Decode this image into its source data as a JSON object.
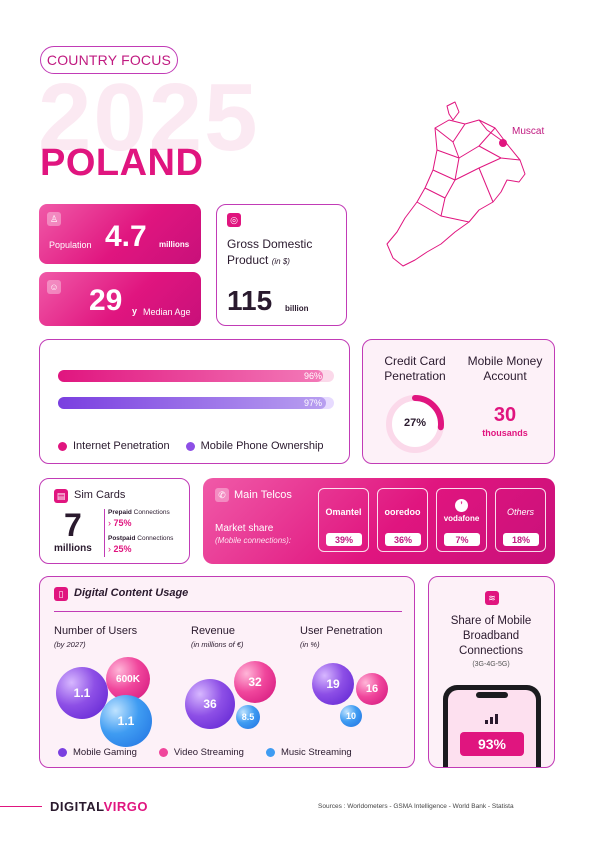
{
  "header": {
    "badge": "COUNTRY FOCUS",
    "year": "2025",
    "country": "POLAND"
  },
  "map": {
    "city": "Muscat"
  },
  "population": {
    "label": "Population",
    "value": "4.7",
    "unit": "millions"
  },
  "median_age": {
    "value": "29",
    "unit": "y",
    "label": "Median Age"
  },
  "gdp": {
    "label_line1": "Gross Domestic",
    "label_line2": "Product",
    "label_note": "(in $)",
    "value": "115",
    "unit": "billion"
  },
  "penetration": {
    "internet": {
      "label": "Internet Penetration",
      "percent": 96,
      "value_text": "96%"
    },
    "mobile": {
      "label": "Mobile Phone Ownership",
      "percent": 97,
      "value_text": "97%"
    }
  },
  "credit_card": {
    "label_line1": "Credit Card",
    "label_line2": "Penetration",
    "percent": 27,
    "value_text": "27%"
  },
  "mobile_money": {
    "label_line1": "Mobile Money",
    "label_line2": "Account",
    "value": "30",
    "unit": "thousands"
  },
  "sim": {
    "title": "Sim Cards",
    "value": "7",
    "unit": "millions",
    "prepaid_label": "Prepaid",
    "prepaid_suffix": " Connections",
    "prepaid_value": "75%",
    "postpaid_label": "Postpaid",
    "postpaid_suffix": " Connections",
    "postpaid_value": "25%"
  },
  "telcos": {
    "title": "Main Telcos",
    "market_label": "Market share",
    "market_note": "(Mobile connections):",
    "items": [
      {
        "name": "Omantel",
        "value": "39%"
      },
      {
        "name": "ooredoo",
        "value": "36%"
      },
      {
        "name": "vodafone",
        "value": "7%"
      },
      {
        "name": "Others",
        "value": "18%"
      }
    ]
  },
  "digital": {
    "title": "Digital Content Usage",
    "users": {
      "title": "Number of Users",
      "note": "(by 2027)",
      "gaming": "1.1",
      "video": "600K",
      "music": "1.1"
    },
    "revenue": {
      "title": "Revenue",
      "note": "(in millions of €)",
      "gaming": "36",
      "video": "32",
      "music": "8.5"
    },
    "penetration": {
      "title": "User Penetration",
      "note": "(in %)",
      "gaming": "19",
      "video": "16",
      "music": "10"
    },
    "legend": {
      "gaming": "Mobile Gaming",
      "video": "Video Streaming",
      "music": "Music Streaming"
    }
  },
  "broadband": {
    "line1": "Share of Mobile",
    "line2": "Broadband",
    "line3": "Connections",
    "note": "(3G-4G-5G)",
    "value": "93%"
  },
  "footer": {
    "brand_a": "DIGITAL",
    "brand_b": "VIRGO",
    "sources": "Sources : Worldometers - GSMA Intelligence - World Bank - Statista"
  },
  "colors": {
    "pink": "#e0157f",
    "purple": "#7a3fe0",
    "blue": "#3f9cf2",
    "border": "#c13bb6"
  }
}
